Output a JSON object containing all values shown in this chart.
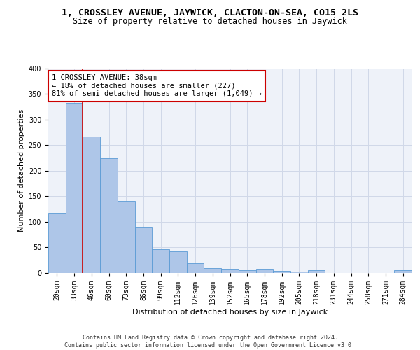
{
  "title": "1, CROSSLEY AVENUE, JAYWICK, CLACTON-ON-SEA, CO15 2LS",
  "subtitle": "Size of property relative to detached houses in Jaywick",
  "xlabel": "Distribution of detached houses by size in Jaywick",
  "ylabel": "Number of detached properties",
  "categories": [
    "20sqm",
    "33sqm",
    "46sqm",
    "60sqm",
    "73sqm",
    "86sqm",
    "99sqm",
    "112sqm",
    "126sqm",
    "139sqm",
    "152sqm",
    "165sqm",
    "178sqm",
    "192sqm",
    "205sqm",
    "218sqm",
    "231sqm",
    "244sqm",
    "258sqm",
    "271sqm",
    "284sqm"
  ],
  "values": [
    117,
    332,
    267,
    224,
    141,
    90,
    46,
    42,
    19,
    10,
    7,
    5,
    7,
    4,
    3,
    5,
    0,
    0,
    0,
    0,
    5
  ],
  "bar_color": "#aec6e8",
  "bar_edgecolor": "#5b9bd5",
  "annotation_text": "1 CROSSLEY AVENUE: 38sqm\n← 18% of detached houses are smaller (227)\n81% of semi-detached houses are larger (1,049) →",
  "annotation_box_color": "#ffffff",
  "annotation_box_edgecolor": "#cc0000",
  "grid_color": "#d0d8e8",
  "background_color": "#eef2f9",
  "footer_text": "Contains HM Land Registry data © Crown copyright and database right 2024.\nContains public sector information licensed under the Open Government Licence v3.0.",
  "ylim": [
    0,
    400
  ],
  "yticks": [
    0,
    50,
    100,
    150,
    200,
    250,
    300,
    350,
    400
  ],
  "title_fontsize": 9.5,
  "subtitle_fontsize": 8.5,
  "xlabel_fontsize": 8,
  "ylabel_fontsize": 8,
  "tick_fontsize": 7,
  "footer_fontsize": 6,
  "annotation_fontsize": 7.5,
  "red_line_color": "#cc0000",
  "red_line_x": 1.5
}
